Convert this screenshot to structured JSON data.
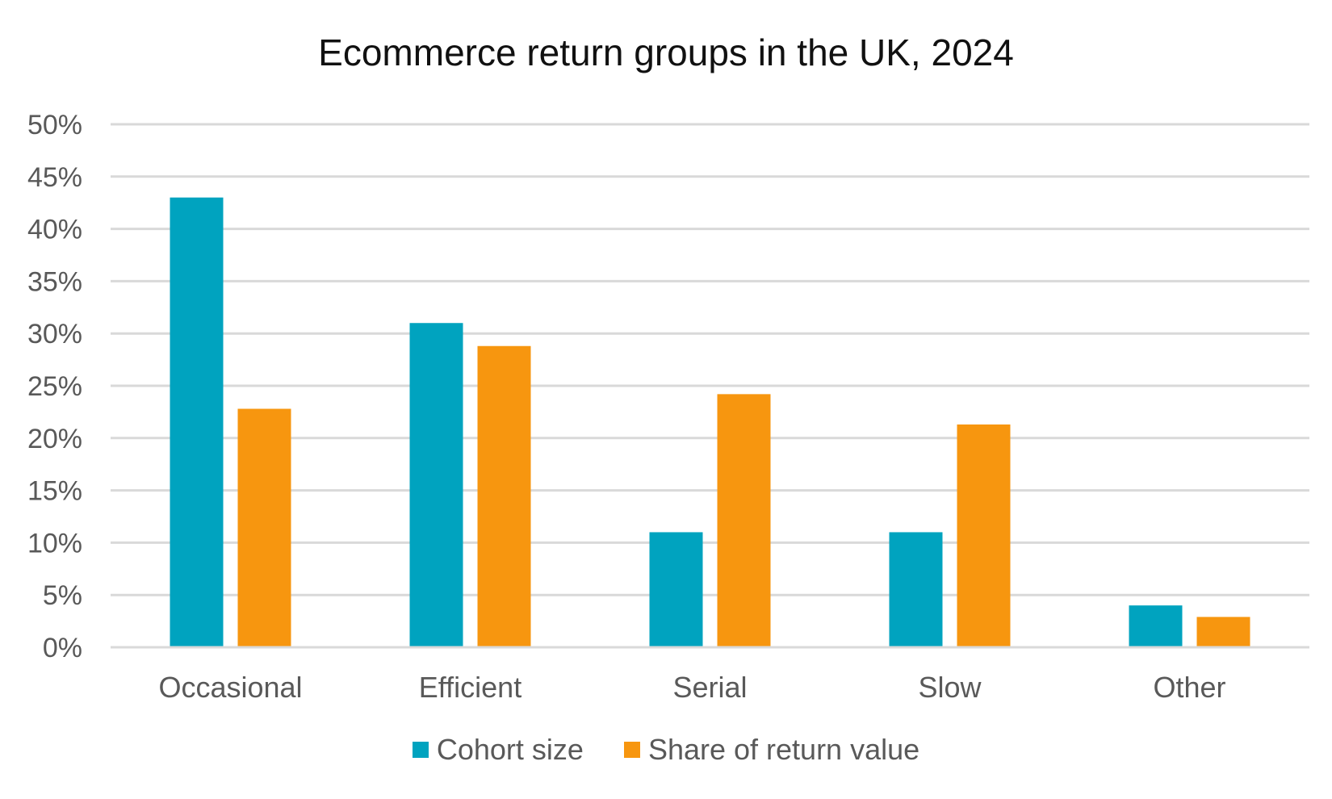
{
  "chart_data": {
    "type": "bar",
    "title": "Ecommerce return groups in the UK, 2024",
    "categories": [
      "Occasional",
      "Efficient",
      "Serial",
      "Slow",
      "Other"
    ],
    "series": [
      {
        "name": "Cohort size",
        "color": "#00A3BF",
        "values": [
          43,
          31,
          11,
          11,
          4
        ]
      },
      {
        "name": "Share of return value",
        "color": "#F7960F",
        "values": [
          22.8,
          28.8,
          24.2,
          21.3,
          2.9
        ]
      }
    ],
    "ylim": [
      0,
      50
    ],
    "yticks": [
      "0%",
      "5%",
      "10%",
      "15%",
      "20%",
      "25%",
      "30%",
      "35%",
      "40%",
      "45%",
      "50%"
    ],
    "grid": true,
    "legend_position": "bottom"
  }
}
